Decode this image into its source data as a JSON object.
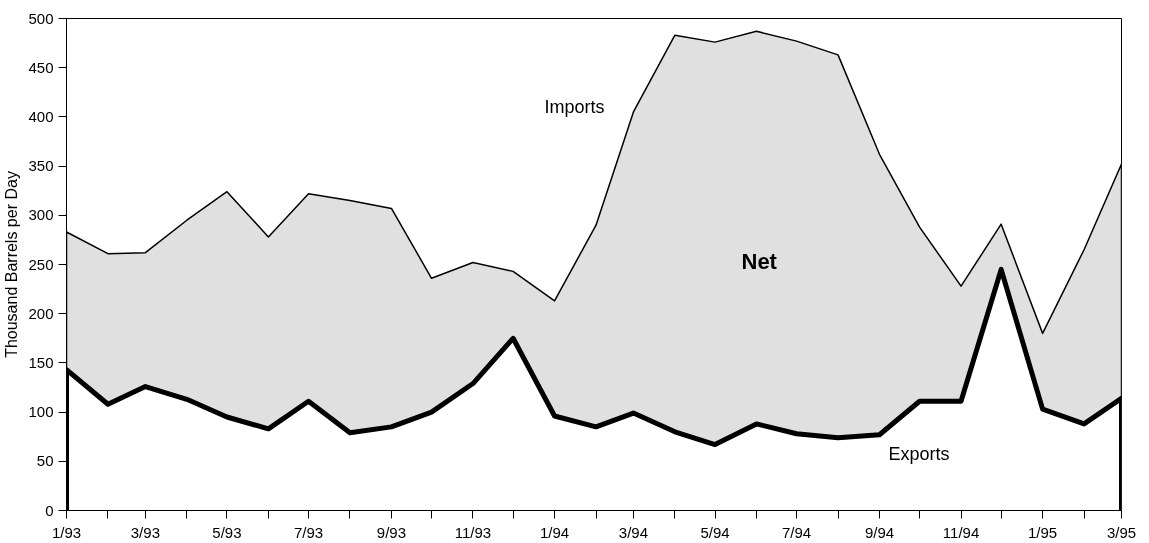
{
  "chart_data": {
    "type": "area",
    "ylabel": "Thousand Barrels per Day",
    "xlim": [
      "1993-01",
      "1995-03"
    ],
    "ylim": [
      0,
      500
    ],
    "xticks": [
      {
        "value": "1993-01",
        "label": "1/93"
      },
      {
        "value": "1993-02",
        "label": null
      },
      {
        "value": "1993-03",
        "label": "3/93"
      },
      {
        "value": "1993-04",
        "label": null
      },
      {
        "value": "1993-05",
        "label": "5/93"
      },
      {
        "value": "1993-06",
        "label": null
      },
      {
        "value": "1993-07",
        "label": "7/93"
      },
      {
        "value": "1993-08",
        "label": null
      },
      {
        "value": "1993-09",
        "label": "9/93"
      },
      {
        "value": "1993-10",
        "label": null
      },
      {
        "value": "1993-11",
        "label": "11/93"
      },
      {
        "value": "1993-12",
        "label": null
      },
      {
        "value": "1994-01",
        "label": "1/94"
      },
      {
        "value": "1994-02",
        "label": null
      },
      {
        "value": "1994-03",
        "label": "3/94"
      },
      {
        "value": "1994-04",
        "label": null
      },
      {
        "value": "1994-05",
        "label": "5/94"
      },
      {
        "value": "1994-06",
        "label": null
      },
      {
        "value": "1994-07",
        "label": "7/94"
      },
      {
        "value": "1994-08",
        "label": null
      },
      {
        "value": "1994-09",
        "label": "9/94"
      },
      {
        "value": "1994-10",
        "label": null
      },
      {
        "value": "1994-11",
        "label": "11/94"
      },
      {
        "value": "1994-12",
        "label": null
      },
      {
        "value": "1995-01",
        "label": "1/95"
      },
      {
        "value": "1995-02",
        "label": null
      },
      {
        "value": "1995-03",
        "label": "3/95"
      }
    ],
    "yticks": [
      0,
      50,
      100,
      150,
      200,
      250,
      300,
      350,
      400,
      450,
      500
    ],
    "series": [
      {
        "color": "#e0e0e0",
        "x": [
          "1993-01",
          "1993-02",
          "1993-03",
          "1993-04",
          "1993-05",
          "1993-06",
          "1993-07",
          "1993-08",
          "1993-09",
          "1993-10",
          "1993-11",
          "1993-12",
          "1994-01",
          "1994-02",
          "1994-03",
          "1994-04",
          "1994-05",
          "1994-06",
          "1994-07",
          "1994-08",
          "1994-09",
          "1994-10",
          "1994-11",
          "1994-12",
          "1995-01",
          "1995-02",
          "1995-03"
        ],
        "values": [
          283,
          261,
          262,
          295,
          324,
          278,
          322,
          315,
          307,
          236,
          252,
          243,
          213,
          290,
          405,
          483,
          476,
          487,
          477,
          463,
          362,
          288,
          228,
          291,
          180,
          265,
          352
        ]
      },
      {
        "color": "#ffffff",
        "x": [
          "1993-01",
          "1993-02",
          "1993-03",
          "1993-04",
          "1993-05",
          "1993-06",
          "1993-07",
          "1993-08",
          "1993-09",
          "1993-10",
          "1993-11",
          "1993-12",
          "1994-01",
          "1994-02",
          "1994-03",
          "1994-04",
          "1994-05",
          "1994-06",
          "1994-07",
          "1994-08",
          "1994-09",
          "1994-10",
          "1994-11",
          "1994-12",
          "1995-01",
          "1995-02",
          "1995-03"
        ],
        "values": [
          143,
          108,
          126,
          113,
          95,
          83,
          111,
          79,
          85,
          100,
          129,
          175,
          96,
          85,
          99,
          80,
          67,
          88,
          78,
          74,
          77,
          111,
          111,
          245,
          103,
          88,
          114
        ]
      }
    ],
    "annotations": [
      "Imports",
      "Net",
      "Exports"
    ]
  }
}
